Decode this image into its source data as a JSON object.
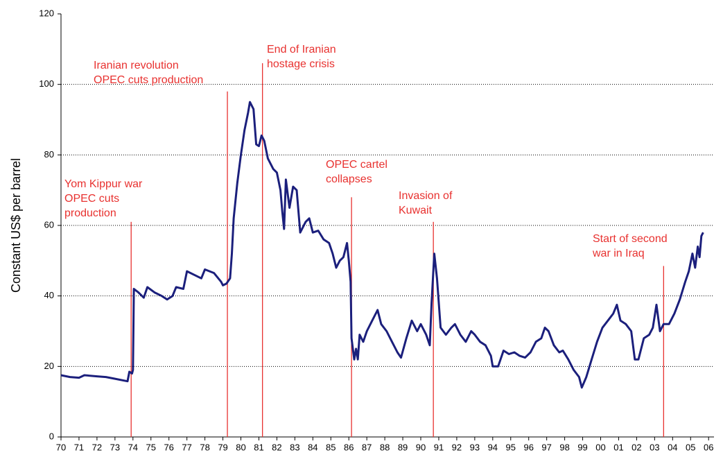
{
  "chart_data": {
    "type": "line",
    "y_label": "Constant US$ per barrel",
    "xlim": [
      1970,
      2006.3
    ],
    "ylim": [
      0,
      120
    ],
    "yticks": [
      0,
      20,
      40,
      60,
      80,
      100,
      120
    ],
    "xticks": [
      {
        "value": 1970,
        "label": "70"
      },
      {
        "value": 1971,
        "label": "71"
      },
      {
        "value": 1972,
        "label": "72"
      },
      {
        "value": 1973,
        "label": "73"
      },
      {
        "value": 1974,
        "label": "74"
      },
      {
        "value": 1975,
        "label": "75"
      },
      {
        "value": 1976,
        "label": "76"
      },
      {
        "value": 1977,
        "label": "77"
      },
      {
        "value": 1978,
        "label": "78"
      },
      {
        "value": 1979,
        "label": "79"
      },
      {
        "value": 1980,
        "label": "80"
      },
      {
        "value": 1981,
        "label": "81"
      },
      {
        "value": 1982,
        "label": "82"
      },
      {
        "value": 1983,
        "label": "83"
      },
      {
        "value": 1984,
        "label": "84"
      },
      {
        "value": 1985,
        "label": "85"
      },
      {
        "value": 1986,
        "label": "86"
      },
      {
        "value": 1987,
        "label": "87"
      },
      {
        "value": 1988,
        "label": "88"
      },
      {
        "value": 1989,
        "label": "89"
      },
      {
        "value": 1990,
        "label": "90"
      },
      {
        "value": 1991,
        "label": "91"
      },
      {
        "value": 1992,
        "label": "92"
      },
      {
        "value": 1993,
        "label": "93"
      },
      {
        "value": 1994,
        "label": "94"
      },
      {
        "value": 1995,
        "label": "95"
      },
      {
        "value": 1996,
        "label": "96"
      },
      {
        "value": 1997,
        "label": "97"
      },
      {
        "value": 1998,
        "label": "98"
      },
      {
        "value": 1999,
        "label": "99"
      },
      {
        "value": 2000,
        "label": "00"
      },
      {
        "value": 2001,
        "label": "01"
      },
      {
        "value": 2002,
        "label": "02"
      },
      {
        "value": 2003,
        "label": "03"
      },
      {
        "value": 2004,
        "label": "04"
      },
      {
        "value": 2005,
        "label": "05"
      },
      {
        "value": 2006,
        "label": "06"
      }
    ],
    "grid": true,
    "color": "#1b1f7c",
    "x": [
      1970.0,
      1970.5,
      1971.0,
      1971.3,
      1972,
      1972.5,
      1973,
      1973.5,
      1973.7,
      1973.8,
      1973.95,
      1974.0,
      1974.05,
      1974.3,
      1974.6,
      1974.8,
      1975.2,
      1975.6,
      1975.9,
      1976.2,
      1976.4,
      1976.8,
      1977.0,
      1977.4,
      1977.8,
      1978.0,
      1978.5,
      1978.9,
      1979.0,
      1979.2,
      1979.4,
      1979.5,
      1979.6,
      1979.8,
      1980.0,
      1980.2,
      1980.4,
      1980.5,
      1980.7,
      1980.85,
      1981.0,
      1981.15,
      1981.3,
      1981.5,
      1981.8,
      1982.0,
      1982.2,
      1982.3,
      1982.4,
      1982.5,
      1982.7,
      1982.9,
      1983.1,
      1983.3,
      1983.6,
      1983.8,
      1984.0,
      1984.3,
      1984.6,
      1984.9,
      1985.1,
      1985.3,
      1985.5,
      1985.7,
      1985.9,
      1986.0,
      1986.1,
      1986.15,
      1986.3,
      1986.4,
      1986.5,
      1986.6,
      1986.8,
      1987.0,
      1987.3,
      1987.6,
      1987.8,
      1988.1,
      1988.4,
      1988.7,
      1988.9,
      1989.2,
      1989.5,
      1989.8,
      1990.0,
      1990.3,
      1990.5,
      1990.6,
      1990.75,
      1990.9,
      1991.1,
      1991.4,
      1991.7,
      1991.9,
      1992.2,
      1992.5,
      1992.8,
      1993.0,
      1993.3,
      1993.6,
      1993.9,
      1994.0,
      1994.3,
      1994.6,
      1994.9,
      1995.2,
      1995.5,
      1995.8,
      1996.1,
      1996.4,
      1996.7,
      1996.9,
      1997.1,
      1997.4,
      1997.7,
      1997.9,
      1998.2,
      1998.5,
      1998.8,
      1998.95,
      1999.2,
      1999.5,
      1999.8,
      2000.1,
      2000.4,
      2000.7,
      2000.9,
      2001.1,
      2001.4,
      2001.7,
      2001.9,
      2002.1,
      2002.4,
      2002.7,
      2002.9,
      2003.1,
      2003.3,
      2003.5,
      2003.8,
      2004.1,
      2004.4,
      2004.7,
      2004.9,
      2005.1,
      2005.25,
      2005.4,
      2005.5,
      2005.6,
      2005.7
    ],
    "series": [
      {
        "values": [
          17.5,
          17,
          16.8,
          17.5,
          17.2,
          17,
          16.5,
          16,
          15.8,
          18.5,
          18,
          19,
          42,
          41,
          39.5,
          42.5,
          41,
          40,
          39,
          40,
          42.5,
          42,
          47,
          46,
          45,
          47.5,
          46.5,
          44,
          43,
          43.5,
          45,
          52,
          62,
          72,
          80,
          87,
          92,
          95,
          93,
          83,
          82.5,
          85.5,
          84,
          79,
          76,
          75,
          70,
          64,
          59,
          73,
          65,
          71,
          70,
          58,
          61,
          62,
          58,
          58.5,
          56,
          55,
          52,
          48,
          50,
          51,
          55,
          50,
          44,
          28,
          22,
          25,
          22,
          29,
          27,
          30,
          33,
          36,
          32,
          30,
          27,
          24,
          22.5,
          28,
          33,
          30,
          32,
          29,
          26,
          38,
          52,
          45,
          31,
          29,
          31,
          32,
          29,
          27,
          30,
          29,
          27,
          26,
          23,
          20,
          20,
          24.5,
          23.5,
          24,
          23,
          22.5,
          24,
          27,
          28,
          31,
          30,
          26,
          24,
          24.5,
          22,
          19,
          17,
          14,
          17,
          22,
          27,
          31,
          33,
          35,
          37.5,
          33,
          32,
          30,
          22,
          22,
          28,
          29,
          31,
          37.5,
          30,
          32,
          32,
          35,
          39,
          44,
          47,
          52,
          48,
          54,
          51,
          57,
          58
        ]
      }
    ],
    "annotations": [
      {
        "x": 1973.9,
        "y": 61,
        "lines": [
          "Yom Kippur war",
          "OPEC cuts",
          "production"
        ]
      },
      {
        "x": 1979.25,
        "y": 98,
        "lines": [
          "Iranian revolution",
          "OPEC cuts production"
        ]
      },
      {
        "x": 1981.2,
        "y": 106,
        "lines": [
          "End of Iranian",
          "hostage crisis"
        ]
      },
      {
        "x": 1986.15,
        "y": 68,
        "lines": [
          "OPEC cartel",
          "collapses"
        ]
      },
      {
        "x": 1990.7,
        "y": 61,
        "lines": [
          "Invasion of",
          "Kuwait"
        ]
      },
      {
        "x": 2003.5,
        "y": 48.5,
        "lines": [
          "Start of second",
          "war in Iraq"
        ]
      }
    ]
  }
}
